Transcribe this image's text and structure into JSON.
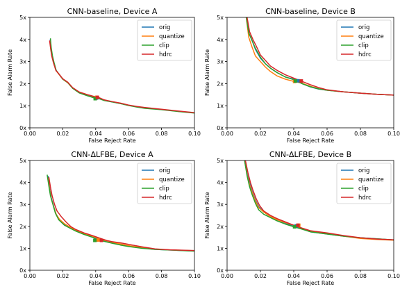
{
  "chart_data": [
    {
      "type": "line",
      "title": "CNN-baseline, Device A",
      "xlabel": "False Reject Rate",
      "ylabel": "False Alarm Rate",
      "xlim": [
        0,
        0.1
      ],
      "ylim": [
        0,
        5
      ],
      "xticks": [
        "0.00",
        "0.02",
        "0.04",
        "0.06",
        "0.08",
        "0.10"
      ],
      "yticks": [
        "0x",
        "1x",
        "2x",
        "3x",
        "4x",
        "5x"
      ],
      "legend_position": "top-right",
      "series": [
        {
          "name": "orig",
          "color": "#1f77b4",
          "x": [
            0.0123,
            0.0128,
            0.0135,
            0.0145,
            0.016,
            0.0175,
            0.02,
            0.023,
            0.026,
            0.03,
            0.035,
            0.04,
            0.042,
            0.045,
            0.05,
            0.055,
            0.06,
            0.065,
            0.07,
            0.08,
            0.09,
            0.1
          ],
          "y": [
            4.0,
            3.6,
            3.25,
            2.95,
            2.6,
            2.45,
            2.2,
            2.05,
            1.8,
            1.6,
            1.48,
            1.37,
            1.35,
            1.25,
            1.17,
            1.1,
            1.02,
            0.95,
            0.9,
            0.83,
            0.75,
            0.68
          ]
        },
        {
          "name": "quantize",
          "color": "#ff7f0e",
          "x": [
            0.0123,
            0.0128,
            0.0135,
            0.0145,
            0.016,
            0.0175,
            0.02,
            0.023,
            0.026,
            0.03,
            0.035,
            0.04,
            0.042,
            0.045,
            0.05,
            0.055,
            0.06,
            0.065,
            0.07,
            0.08,
            0.09,
            0.1
          ],
          "y": [
            3.95,
            3.55,
            3.22,
            2.93,
            2.58,
            2.44,
            2.2,
            2.04,
            1.8,
            1.62,
            1.5,
            1.38,
            1.36,
            1.26,
            1.18,
            1.1,
            1.02,
            0.96,
            0.91,
            0.83,
            0.75,
            0.68
          ]
        },
        {
          "name": "clip",
          "color": "#2ca02c",
          "x": [
            0.0125,
            0.013,
            0.0137,
            0.0147,
            0.016,
            0.0175,
            0.02,
            0.023,
            0.026,
            0.03,
            0.035,
            0.04,
            0.042,
            0.045,
            0.05,
            0.055,
            0.06,
            0.065,
            0.07,
            0.08,
            0.09,
            0.1
          ],
          "y": [
            4.05,
            3.62,
            3.27,
            2.96,
            2.6,
            2.45,
            2.2,
            2.05,
            1.79,
            1.58,
            1.45,
            1.33,
            1.32,
            1.24,
            1.17,
            1.1,
            1.01,
            0.94,
            0.88,
            0.82,
            0.74,
            0.67
          ]
        },
        {
          "name": "hdrc",
          "color": "#d62728",
          "x": [
            0.012,
            0.0126,
            0.0133,
            0.0143,
            0.0158,
            0.0173,
            0.02,
            0.023,
            0.026,
            0.03,
            0.035,
            0.04,
            0.042,
            0.045,
            0.05,
            0.055,
            0.06,
            0.065,
            0.07,
            0.08,
            0.09,
            0.1
          ],
          "y": [
            3.95,
            3.58,
            3.25,
            2.95,
            2.6,
            2.47,
            2.22,
            2.07,
            1.82,
            1.62,
            1.5,
            1.4,
            1.37,
            1.27,
            1.19,
            1.12,
            1.03,
            0.97,
            0.92,
            0.84,
            0.76,
            0.69
          ]
        }
      ],
      "markers": [
        {
          "series": "orig",
          "x": 0.0405,
          "y": 1.35
        },
        {
          "series": "quantize",
          "x": 0.0405,
          "y": 1.38
        },
        {
          "series": "clip",
          "x": 0.0397,
          "y": 1.32
        },
        {
          "series": "hdrc",
          "x": 0.041,
          "y": 1.38
        }
      ]
    },
    {
      "type": "line",
      "title": "CNN-baseline, Device B",
      "xlabel": "False Reject Rate",
      "ylabel": "False Alarm Rate",
      "xlim": [
        0,
        0.1
      ],
      "ylim": [
        0,
        5
      ],
      "xticks": [
        "0.00",
        "0.02",
        "0.04",
        "0.06",
        "0.08",
        "0.10"
      ],
      "yticks": [
        "0x",
        "1x",
        "2x",
        "3x",
        "4x",
        "5x"
      ],
      "legend_position": "top-right",
      "series": [
        {
          "name": "orig",
          "color": "#1f77b4",
          "x": [
            0.0115,
            0.013,
            0.015,
            0.017,
            0.02,
            0.023,
            0.026,
            0.03,
            0.035,
            0.04,
            0.045,
            0.05,
            0.055,
            0.06,
            0.07,
            0.08,
            0.09,
            0.1
          ],
          "y": [
            5.0,
            4.3,
            3.95,
            3.55,
            3.15,
            2.9,
            2.7,
            2.5,
            2.3,
            2.2,
            2.0,
            1.85,
            1.75,
            1.7,
            1.63,
            1.57,
            1.52,
            1.48
          ]
        },
        {
          "name": "quantize",
          "color": "#ff7f0e",
          "x": [
            0.0115,
            0.013,
            0.015,
            0.017,
            0.02,
            0.023,
            0.026,
            0.03,
            0.035,
            0.04,
            0.045,
            0.05,
            0.055,
            0.06,
            0.07,
            0.08,
            0.09,
            0.1
          ],
          "y": [
            5.0,
            4.1,
            3.65,
            3.25,
            3.0,
            2.75,
            2.55,
            2.35,
            2.2,
            2.1,
            2.02,
            1.88,
            1.77,
            1.7,
            1.63,
            1.57,
            1.52,
            1.48
          ]
        },
        {
          "name": "clip",
          "color": "#2ca02c",
          "x": [
            0.0115,
            0.013,
            0.015,
            0.017,
            0.02,
            0.023,
            0.026,
            0.03,
            0.035,
            0.04,
            0.045,
            0.05,
            0.055,
            0.06,
            0.07,
            0.08,
            0.09,
            0.1
          ],
          "y": [
            5.0,
            4.3,
            3.95,
            3.6,
            3.2,
            2.9,
            2.7,
            2.5,
            2.3,
            2.18,
            2.0,
            1.86,
            1.76,
            1.7,
            1.63,
            1.57,
            1.52,
            1.48
          ]
        },
        {
          "name": "hdrc",
          "color": "#d62728",
          "x": [
            0.012,
            0.0135,
            0.0155,
            0.0175,
            0.02,
            0.023,
            0.026,
            0.03,
            0.035,
            0.04,
            0.045,
            0.05,
            0.055,
            0.06,
            0.07,
            0.08,
            0.09,
            0.1
          ],
          "y": [
            5.0,
            4.35,
            4.0,
            3.7,
            3.3,
            3.05,
            2.8,
            2.6,
            2.4,
            2.25,
            2.1,
            1.95,
            1.82,
            1.72,
            1.63,
            1.57,
            1.52,
            1.48
          ]
        }
      ],
      "markers": [
        {
          "series": "orig",
          "x": 0.0425,
          "y": 2.13
        },
        {
          "series": "quantize",
          "x": 0.0405,
          "y": 2.1
        },
        {
          "series": "clip",
          "x": 0.041,
          "y": 2.12
        },
        {
          "series": "hdrc",
          "x": 0.0445,
          "y": 2.12
        }
      ]
    },
    {
      "type": "line",
      "title": "CNN-ΔLFBE, Device A",
      "xlabel": "False Reject Rate",
      "ylabel": "False Alarm Rate",
      "xlim": [
        0,
        0.1
      ],
      "ylim": [
        0,
        5
      ],
      "xticks": [
        "0.00",
        "0.02",
        "0.04",
        "0.06",
        "0.08",
        "0.10"
      ],
      "yticks": [
        "0x",
        "1x",
        "2x",
        "3x",
        "4x",
        "5x"
      ],
      "legend_position": "top-right",
      "series": [
        {
          "name": "orig",
          "color": "#1f77b4",
          "x": [
            0.011,
            0.012,
            0.013,
            0.0145,
            0.016,
            0.018,
            0.021,
            0.024,
            0.028,
            0.033,
            0.038,
            0.042,
            0.046,
            0.05,
            0.055,
            0.06,
            0.068,
            0.076,
            0.085,
            0.1
          ],
          "y": [
            4.3,
            3.75,
            3.3,
            2.9,
            2.55,
            2.3,
            2.1,
            1.95,
            1.8,
            1.65,
            1.52,
            1.4,
            1.32,
            1.25,
            1.18,
            1.1,
            1.02,
            0.95,
            0.92,
            0.88
          ]
        },
        {
          "name": "quantize",
          "color": "#ff7f0e",
          "x": [
            0.011,
            0.012,
            0.013,
            0.0145,
            0.016,
            0.018,
            0.021,
            0.024,
            0.028,
            0.033,
            0.038,
            0.042,
            0.046,
            0.05,
            0.055,
            0.06,
            0.068,
            0.076,
            0.085,
            0.1
          ],
          "y": [
            4.2,
            3.7,
            3.25,
            2.88,
            2.55,
            2.32,
            2.12,
            1.98,
            1.82,
            1.67,
            1.55,
            1.43,
            1.35,
            1.28,
            1.2,
            1.12,
            1.03,
            0.96,
            0.93,
            0.89
          ]
        },
        {
          "name": "clip",
          "color": "#2ca02c",
          "x": [
            0.0105,
            0.0115,
            0.0125,
            0.014,
            0.0155,
            0.0175,
            0.021,
            0.024,
            0.028,
            0.033,
            0.038,
            0.042,
            0.046,
            0.05,
            0.055,
            0.06,
            0.068,
            0.076,
            0.085,
            0.1
          ],
          "y": [
            4.35,
            3.85,
            3.4,
            3.0,
            2.6,
            2.3,
            2.05,
            1.93,
            1.78,
            1.63,
            1.5,
            1.38,
            1.3,
            1.23,
            1.15,
            1.08,
            1.0,
            0.95,
            0.92,
            0.87
          ]
        },
        {
          "name": "hdrc",
          "color": "#d62728",
          "x": [
            0.0115,
            0.0125,
            0.0135,
            0.015,
            0.0165,
            0.019,
            0.022,
            0.025,
            0.028,
            0.033,
            0.038,
            0.043,
            0.047,
            0.05,
            0.055,
            0.06,
            0.068,
            0.076,
            0.085,
            0.1
          ],
          "y": [
            4.25,
            3.8,
            3.4,
            3.0,
            2.7,
            2.45,
            2.2,
            1.98,
            1.85,
            1.7,
            1.58,
            1.45,
            1.35,
            1.3,
            1.25,
            1.18,
            1.07,
            0.97,
            0.93,
            0.9
          ]
        }
      ],
      "markers": [
        {
          "series": "orig",
          "x": 0.0405,
          "y": 1.38
        },
        {
          "series": "quantize",
          "x": 0.0415,
          "y": 1.38
        },
        {
          "series": "clip",
          "x": 0.0395,
          "y": 1.36
        },
        {
          "series": "hdrc",
          "x": 0.0435,
          "y": 1.36
        }
      ]
    },
    {
      "type": "line",
      "title": "CNN-ΔLFBE, Device B",
      "xlabel": "False Reject Rate",
      "ylabel": "False Alarm Rate",
      "xlim": [
        0,
        0.1
      ],
      "ylim": [
        0,
        5
      ],
      "xticks": [
        "0.00",
        "0.02",
        "0.04",
        "0.06",
        "0.08",
        "0.10"
      ],
      "yticks": [
        "0x",
        "1x",
        "2x",
        "3x",
        "4x",
        "5x"
      ],
      "legend_position": "top-right",
      "series": [
        {
          "name": "orig",
          "color": "#1f77b4",
          "x": [
            0.0105,
            0.012,
            0.0135,
            0.015,
            0.017,
            0.019,
            0.022,
            0.026,
            0.03,
            0.035,
            0.04,
            0.045,
            0.05,
            0.06,
            0.07,
            0.08,
            0.09,
            0.1
          ],
          "y": [
            5.0,
            4.4,
            4.0,
            3.6,
            3.2,
            2.9,
            2.65,
            2.45,
            2.3,
            2.15,
            2.0,
            1.88,
            1.75,
            1.65,
            1.55,
            1.48,
            1.43,
            1.38
          ]
        },
        {
          "name": "quantize",
          "color": "#ff7f0e",
          "x": [
            0.0105,
            0.012,
            0.0135,
            0.015,
            0.017,
            0.019,
            0.022,
            0.026,
            0.03,
            0.035,
            0.04,
            0.045,
            0.05,
            0.06,
            0.07,
            0.08,
            0.09,
            0.1
          ],
          "y": [
            5.0,
            4.35,
            3.9,
            3.55,
            3.15,
            2.85,
            2.65,
            2.45,
            2.3,
            2.17,
            2.05,
            1.9,
            1.78,
            1.66,
            1.55,
            1.45,
            1.4,
            1.37
          ]
        },
        {
          "name": "clip",
          "color": "#2ca02c",
          "x": [
            0.0105,
            0.012,
            0.0135,
            0.015,
            0.017,
            0.019,
            0.022,
            0.026,
            0.03,
            0.035,
            0.04,
            0.045,
            0.05,
            0.06,
            0.07,
            0.08,
            0.09,
            0.1
          ],
          "y": [
            5.0,
            4.3,
            3.8,
            3.45,
            3.05,
            2.75,
            2.55,
            2.4,
            2.25,
            2.1,
            1.98,
            1.87,
            1.75,
            1.65,
            1.55,
            1.48,
            1.43,
            1.38
          ]
        },
        {
          "name": "hdrc",
          "color": "#d62728",
          "x": [
            0.011,
            0.0125,
            0.014,
            0.0155,
            0.0175,
            0.0195,
            0.022,
            0.026,
            0.03,
            0.035,
            0.04,
            0.045,
            0.05,
            0.06,
            0.07,
            0.08,
            0.09,
            0.1
          ],
          "y": [
            5.0,
            4.45,
            4.0,
            3.65,
            3.25,
            2.95,
            2.7,
            2.5,
            2.35,
            2.2,
            2.05,
            1.92,
            1.8,
            1.7,
            1.58,
            1.48,
            1.42,
            1.39
          ]
        }
      ],
      "markers": [
        {
          "series": "orig",
          "x": 0.0415,
          "y": 2.02
        },
        {
          "series": "quantize",
          "x": 0.043,
          "y": 2.05
        },
        {
          "series": "clip",
          "x": 0.0405,
          "y": 1.98
        },
        {
          "series": "hdrc",
          "x": 0.0425,
          "y": 2.05
        }
      ]
    }
  ]
}
